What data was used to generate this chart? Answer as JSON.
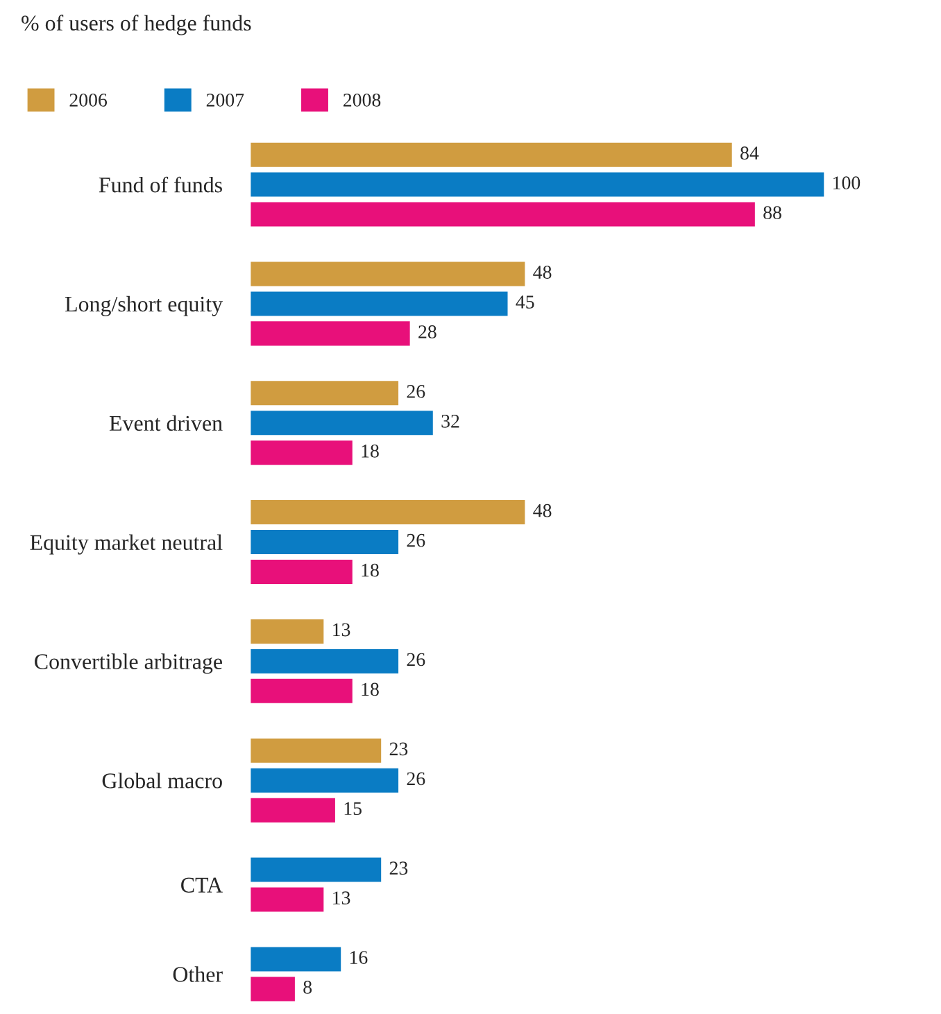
{
  "chart_data": {
    "type": "bar",
    "orientation": "horizontal",
    "title": "% of users of hedge funds",
    "categories": [
      "Fund of funds",
      "Long/short equity",
      "Event driven",
      "Equity market neutral",
      "Convertible arbitrage",
      "Global macro",
      "CTA",
      "Other"
    ],
    "series": [
      {
        "name": "2006",
        "color": "#d09c40",
        "values": [
          84,
          48,
          26,
          48,
          13,
          23,
          null,
          null
        ]
      },
      {
        "name": "2007",
        "color": "#0a7cc4",
        "values": [
          100,
          45,
          32,
          26,
          26,
          26,
          23,
          16
        ]
      },
      {
        "name": "2008",
        "color": "#e8107a",
        "values": [
          88,
          28,
          18,
          18,
          18,
          15,
          13,
          8
        ]
      }
    ],
    "data_labels": true,
    "legend": "top left",
    "grid": false
  }
}
